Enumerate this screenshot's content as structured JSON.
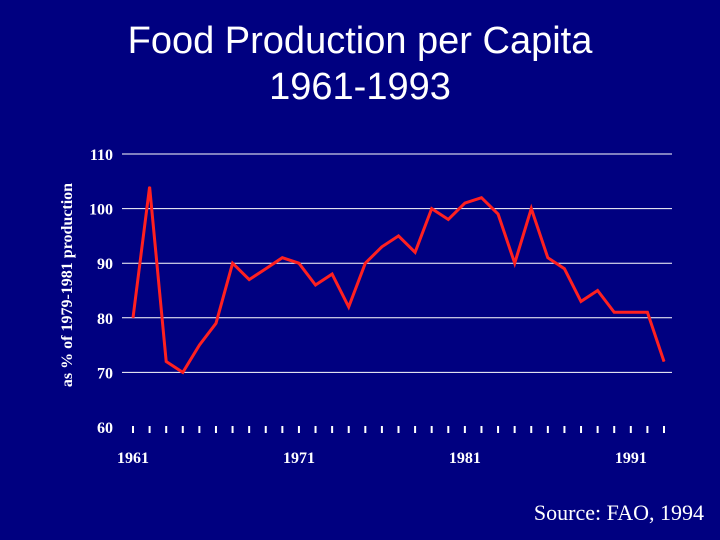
{
  "chart_data": {
    "type": "line",
    "title": [
      "Food Production per Capita",
      "1961-1993"
    ],
    "ylabel": "as % of 1979-1981 production",
    "ylim": [
      60,
      110
    ],
    "yticks": [
      60,
      70,
      80,
      90,
      100,
      110
    ],
    "xlim": [
      1961,
      1993
    ],
    "xtick_labels": [
      1961,
      1971,
      1981,
      1991
    ],
    "grid": true,
    "line_color": "#ff2020",
    "grid_color": "#ffffff",
    "background": "#000080",
    "series": [
      {
        "x": [
          1961,
          1962,
          1963,
          1964,
          1965,
          1966,
          1967,
          1968,
          1969,
          1970,
          1971,
          1972,
          1973,
          1974,
          1975,
          1976,
          1977,
          1978,
          1979,
          1980,
          1981,
          1982,
          1983,
          1984,
          1985,
          1986,
          1987,
          1988,
          1989,
          1990,
          1991,
          1992,
          1993
        ],
        "values": [
          80,
          104,
          72,
          70,
          75,
          79,
          90,
          87,
          89,
          91,
          90,
          86,
          88,
          82,
          90,
          93,
          95,
          92,
          100,
          98,
          101,
          102,
          99,
          90,
          100,
          91,
          89,
          83,
          85,
          81,
          81,
          81,
          72
        ]
      }
    ]
  },
  "source": "Source: FAO, 1994"
}
